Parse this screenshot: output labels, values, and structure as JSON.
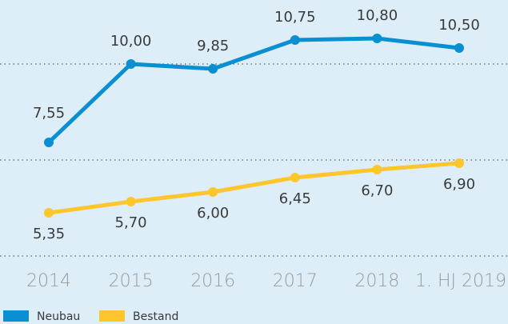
{
  "chart_data": {
    "type": "line",
    "categories": [
      "2014",
      "2015",
      "2016",
      "2017",
      "2018",
      "1. HJ 2019"
    ],
    "series": [
      {
        "name": "Neubau",
        "color": "#0a8fd2",
        "values": [
          7.55,
          10.0,
          9.85,
          10.75,
          10.8,
          10.5
        ],
        "value_labels": [
          "7,55",
          "10,00",
          "9,85",
          "10,75",
          "10,80",
          "10,50"
        ]
      },
      {
        "name": "Bestand",
        "color": "#fcc62c",
        "values": [
          5.35,
          5.7,
          6.0,
          6.45,
          6.7,
          6.9
        ],
        "value_labels": [
          "5,35",
          "5,70",
          "6,00",
          "6,45",
          "6,70",
          "6,90"
        ]
      }
    ],
    "ylim": [
      4,
      12
    ],
    "yticks": [
      4,
      7,
      10
    ],
    "grid": true
  }
}
